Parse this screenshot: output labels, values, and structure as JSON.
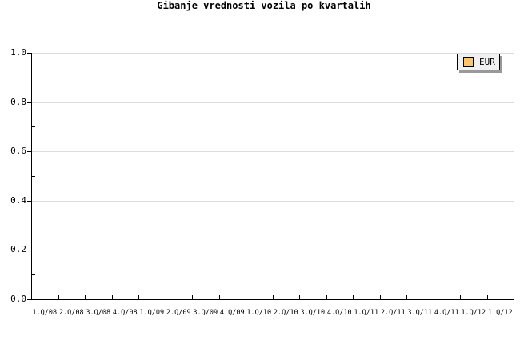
{
  "chart_data": {
    "type": "line",
    "title": "Gibanje vrednosti vozila po kvartalih",
    "categories": [
      "1.Q/08",
      "2.Q/08",
      "3.Q/08",
      "4.Q/08",
      "1.Q/09",
      "2.Q/09",
      "3.Q/09",
      "4.Q/09",
      "1.Q/10",
      "2.Q/10",
      "3.Q/10",
      "4.Q/10",
      "1.Q/11",
      "2.Q/11",
      "3.Q/11",
      "4.Q/11",
      "1.Q/12",
      "1.Q/12"
    ],
    "series": [
      {
        "name": "EUR",
        "values": []
      }
    ],
    "xlabel": "",
    "ylabel": "",
    "ylim": [
      0.0,
      1.0
    ],
    "y_axis": {
      "major_tick_values": [
        1.0,
        0.8,
        0.6,
        0.4,
        0.2,
        0.0
      ],
      "major_tick_labels": [
        "1.0",
        "0.8",
        "0.6",
        "0.4",
        "0.2",
        "0.0"
      ],
      "minor_tick_values": [
        0.9,
        0.7,
        0.5,
        0.3,
        0.1
      ]
    },
    "grid": "horizontal-major-only",
    "legend_position": "top-right"
  },
  "legend": {
    "eur_label": "EUR"
  },
  "colors": {
    "background": "#FFFFFF",
    "text": "#000000",
    "axis": "#000000",
    "grid": "#DCDCDC",
    "legend_fill": "#F0F0F0",
    "legend_border": "#000000",
    "legend_shadow": "#999999",
    "series_eur_swatch": "#FCC666"
  }
}
